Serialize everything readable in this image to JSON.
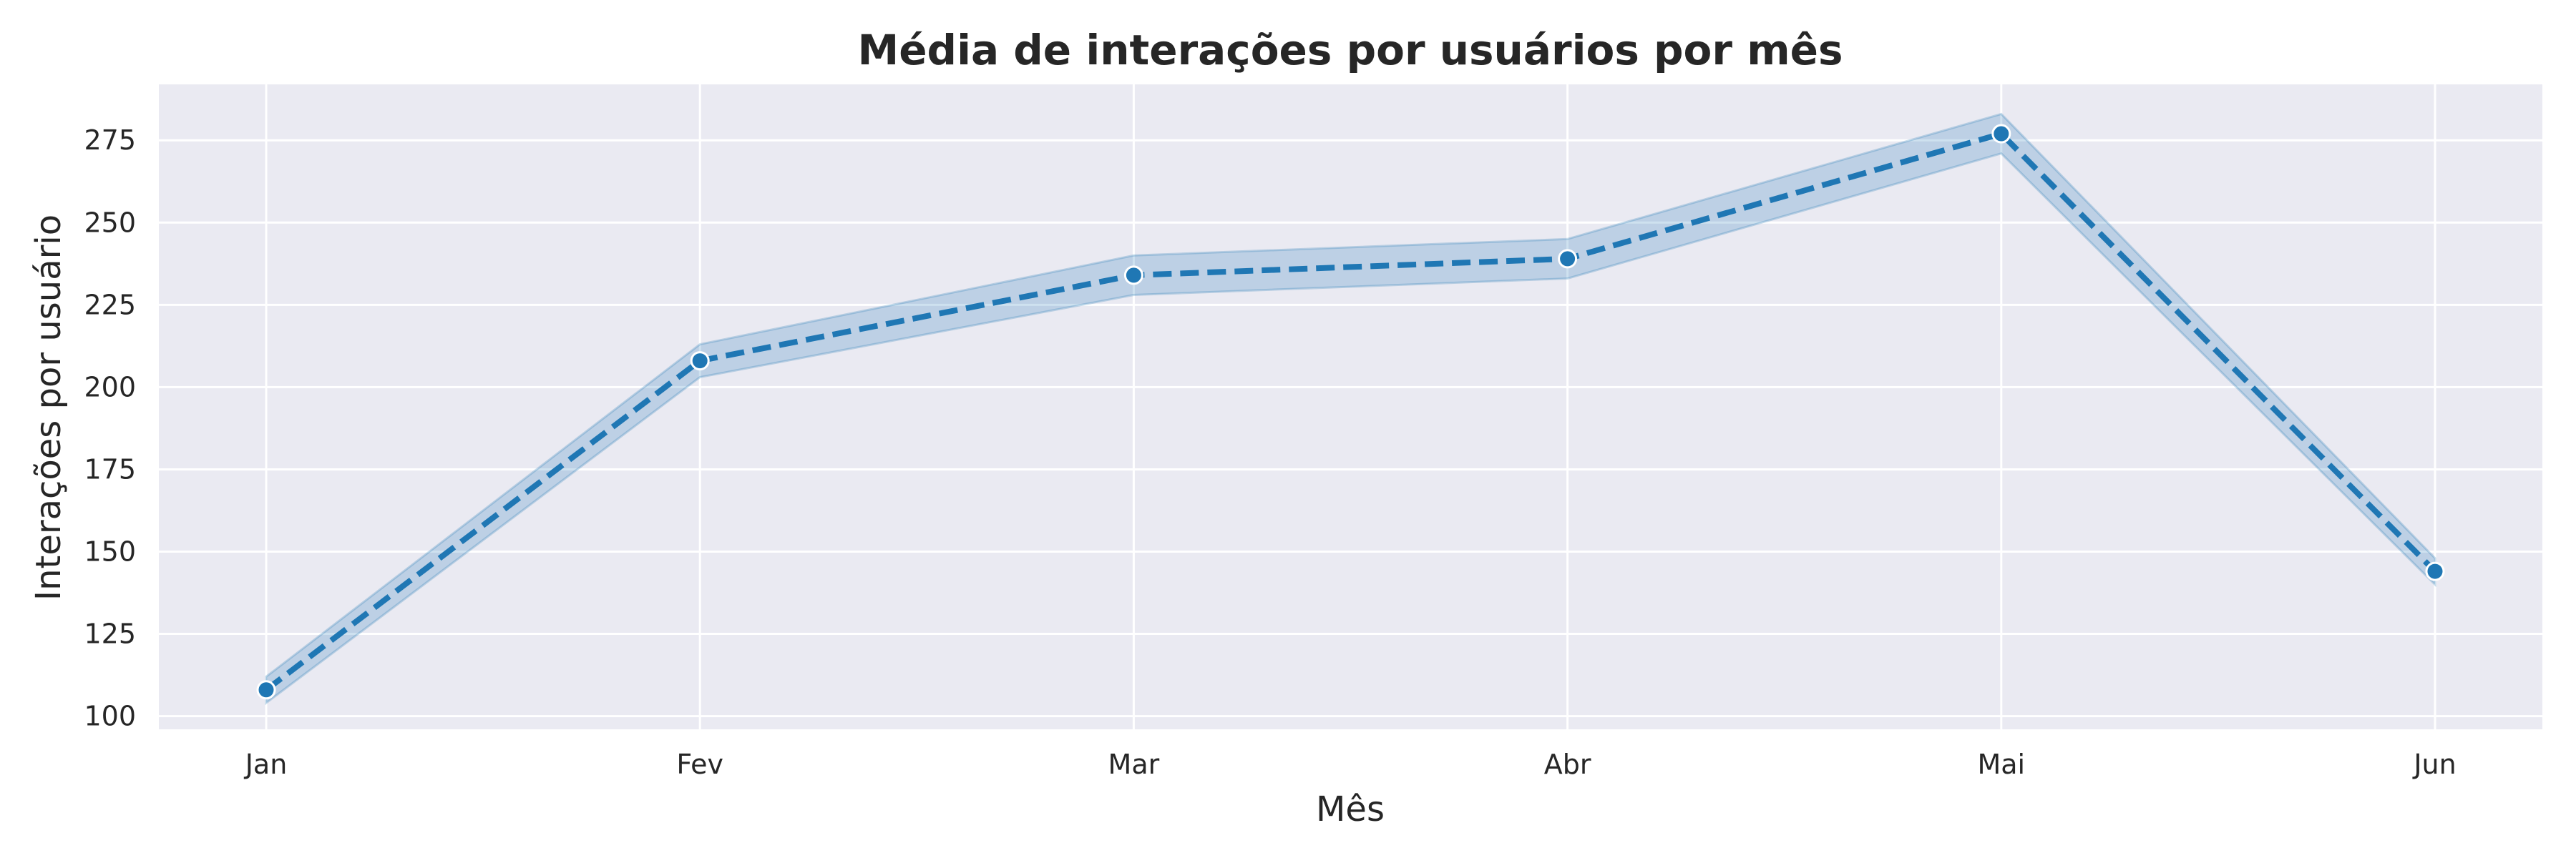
{
  "chart_data": {
    "type": "line",
    "title": "Média de interações por usuários por mês",
    "xlabel": "Mês",
    "ylabel": "Interações por usuário",
    "categories": [
      "Jan",
      "Fev",
      "Mar",
      "Abr",
      "Mai",
      "Jun"
    ],
    "series": [
      {
        "values": [
          108,
          208,
          234,
          239,
          277,
          144
        ],
        "ci_lower": [
          104,
          203,
          228,
          233,
          271,
          140
        ],
        "ci_upper": [
          112,
          213,
          240,
          245,
          283,
          148
        ],
        "line_style": "dashed",
        "marker": "circle"
      }
    ],
    "ylim": [
      96,
      292
    ],
    "yticks": [
      100,
      125,
      150,
      175,
      200,
      225,
      250,
      275
    ],
    "grid": true,
    "colors": {
      "line": "#1f77b4",
      "band": "#1f77b4",
      "plot_background": "#eaeaf2",
      "grid": "#ffffff"
    }
  }
}
